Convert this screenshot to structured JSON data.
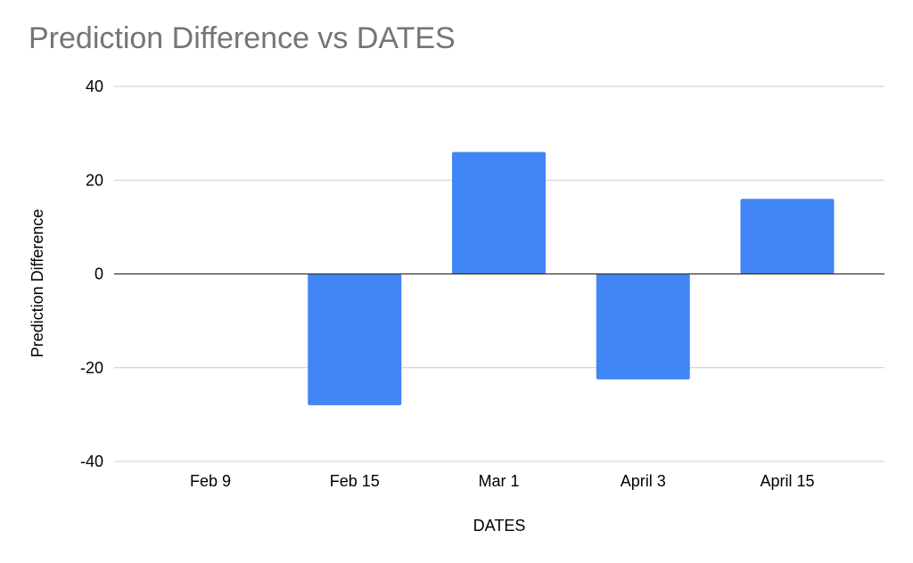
{
  "chart_data": {
    "type": "bar",
    "title": "Prediction Difference vs DATES",
    "xlabel": "DATES",
    "ylabel": "Prediction Difference",
    "categories": [
      "Feb 9",
      "Feb 15",
      "Mar 1",
      "April 3",
      "April 15"
    ],
    "values": [
      0,
      -28,
      26,
      -22.5,
      16
    ],
    "ylim": [
      -40,
      40
    ],
    "yticks": [
      -40,
      -20,
      0,
      20,
      40
    ],
    "grid": true,
    "legend": "none",
    "bar_color": "#4285F4"
  }
}
